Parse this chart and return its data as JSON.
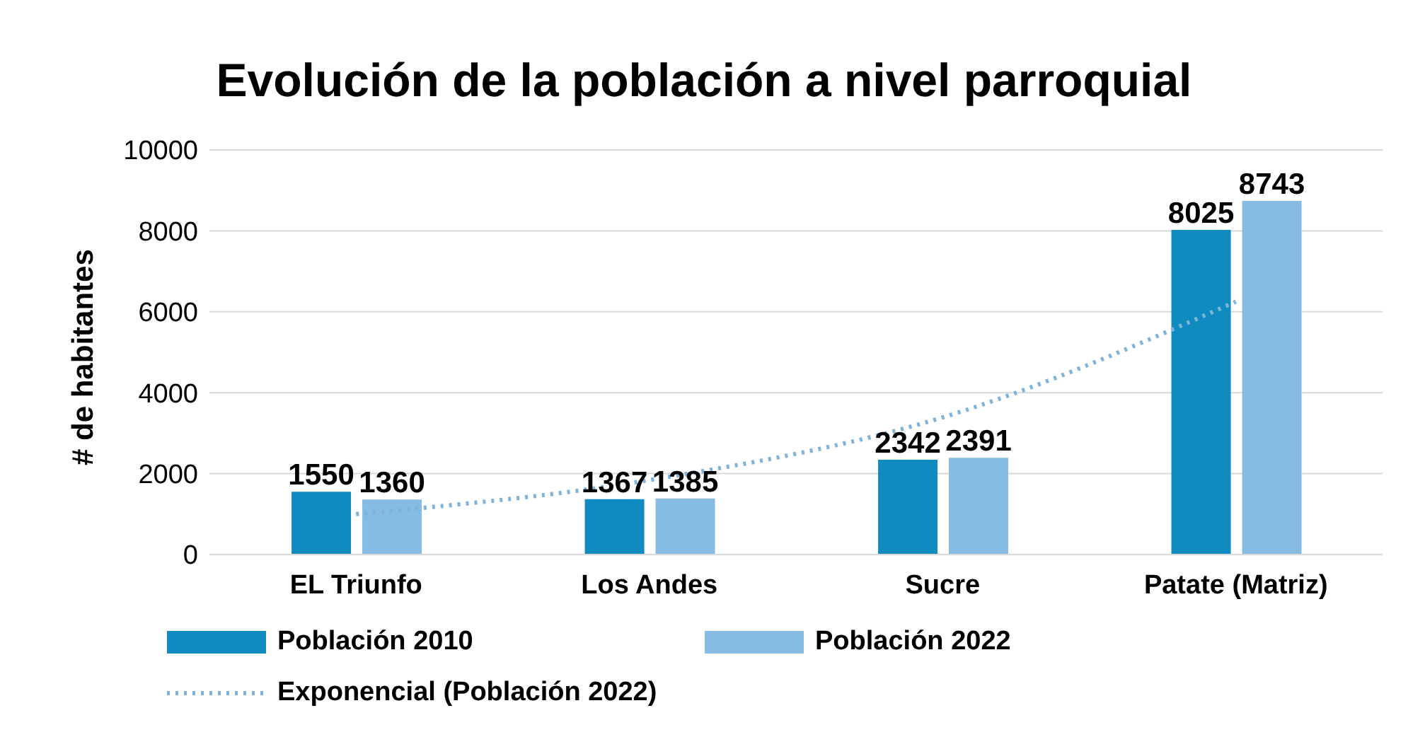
{
  "chart_data": {
    "type": "bar",
    "title": "Evolución de la población a nivel parroquial",
    "ylabel": "# de habitantes",
    "categories": [
      "EL Triunfo",
      "Los Andes",
      "Sucre",
      "Patate (Matriz)"
    ],
    "series": [
      {
        "name": "Población 2010",
        "color": "#108bc0",
        "values": [
          1550,
          1367,
          2342,
          8025
        ],
        "value_labels": [
          "1550",
          "1367",
          "2342",
          "8025"
        ]
      },
      {
        "name": "Población 2022",
        "color": "#86bce3",
        "values": [
          1360,
          1385,
          2391,
          8743
        ],
        "value_labels": [
          "1360",
          "1385",
          "2391",
          "8743"
        ]
      },
      {
        "name": "Exponencial (Población 2022)",
        "type": "line",
        "color": "#7fb3d9",
        "line_style": "dotted",
        "marker": "none",
        "values": [
          1000,
          1840,
          3390,
          6250
        ]
      }
    ],
    "ylim": [
      0,
      10000
    ],
    "yticks": [
      0,
      2000,
      4000,
      6000,
      8000,
      10000
    ],
    "grid": "y",
    "legend": "bottom"
  }
}
